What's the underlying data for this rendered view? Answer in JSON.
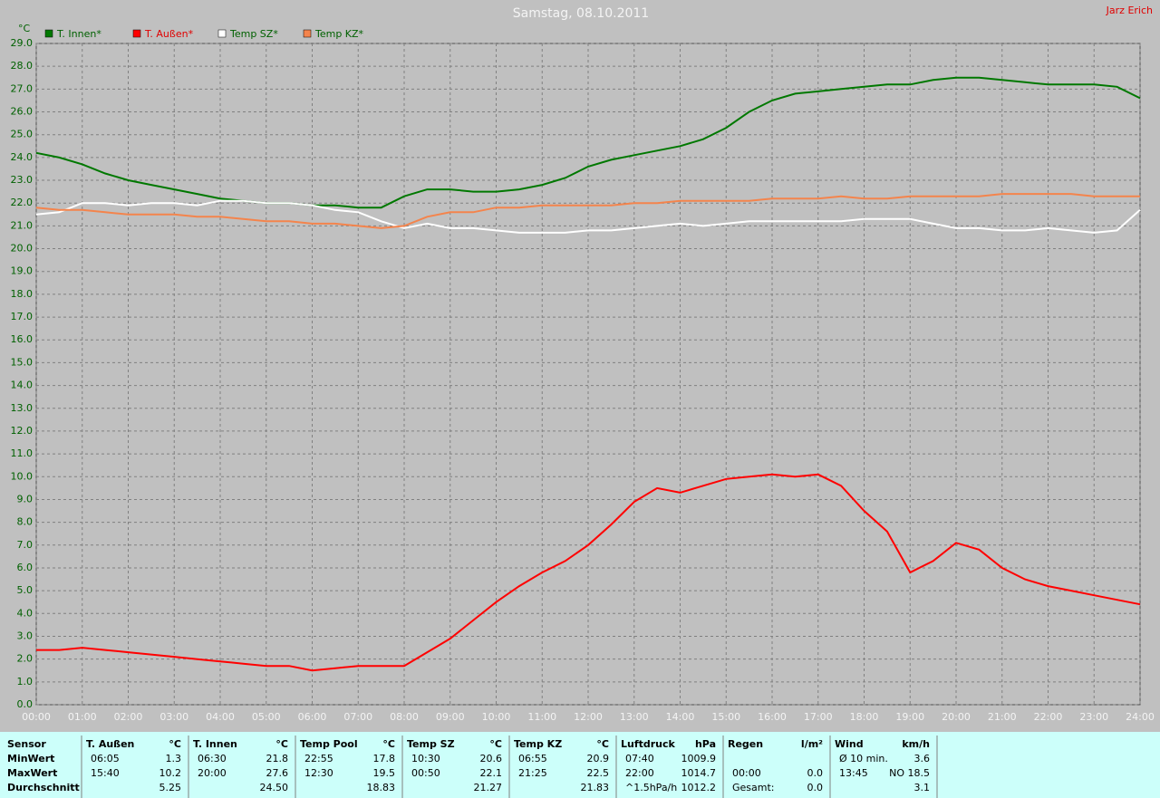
{
  "chart_data": {
    "type": "line",
    "title": "Samstag, 08.10.2011",
    "author": "Jarz Erich",
    "y_unit": "°C",
    "grid": true,
    "x": [
      0,
      0.5,
      1,
      1.5,
      2,
      2.5,
      3,
      3.5,
      4,
      4.5,
      5,
      5.5,
      6,
      6.5,
      7,
      7.5,
      8,
      8.5,
      9,
      9.5,
      10,
      10.5,
      11,
      11.5,
      12,
      12.5,
      13,
      13.5,
      14,
      14.5,
      15,
      15.5,
      16,
      16.5,
      17,
      17.5,
      18,
      18.5,
      19,
      19.5,
      20,
      20.5,
      21,
      21.5,
      22,
      22.5,
      23,
      23.5,
      24
    ],
    "series": [
      {
        "name": "T. Innen*",
        "color": "#007800",
        "values": [
          24.2,
          24.0,
          23.7,
          23.3,
          23.0,
          22.8,
          22.6,
          22.4,
          22.2,
          22.1,
          22.0,
          22.0,
          21.9,
          21.9,
          21.8,
          21.8,
          22.3,
          22.6,
          22.6,
          22.5,
          22.5,
          22.6,
          22.8,
          23.1,
          23.6,
          23.9,
          24.1,
          24.3,
          24.5,
          24.8,
          25.3,
          26.0,
          26.5,
          26.8,
          26.9,
          27.0,
          27.1,
          27.2,
          27.2,
          27.4,
          27.5,
          27.5,
          27.4,
          27.3,
          27.2,
          27.2,
          27.2,
          27.1,
          26.6
        ]
      },
      {
        "name": "T. Außen*",
        "color": "#ff0000",
        "values": [
          2.4,
          2.4,
          2.5,
          2.4,
          2.3,
          2.2,
          2.1,
          2.0,
          1.9,
          1.8,
          1.7,
          1.7,
          1.5,
          1.6,
          1.7,
          1.7,
          1.7,
          2.3,
          2.9,
          3.7,
          4.5,
          5.2,
          5.8,
          6.3,
          7.0,
          7.9,
          8.9,
          9.5,
          9.3,
          9.6,
          9.9,
          10.0,
          10.1,
          10.0,
          10.1,
          9.6,
          8.5,
          7.6,
          5.8,
          6.3,
          7.1,
          6.8,
          6.0,
          5.5,
          5.2,
          5.0,
          4.8,
          4.6,
          4.4
        ]
      },
      {
        "name": "Temp SZ*",
        "color": "#ffffff",
        "values": [
          21.5,
          21.6,
          22.0,
          22.0,
          21.9,
          22.0,
          22.0,
          21.9,
          22.1,
          22.1,
          22.0,
          22.0,
          21.9,
          21.7,
          21.6,
          21.2,
          20.9,
          21.1,
          20.9,
          20.9,
          20.8,
          20.7,
          20.7,
          20.7,
          20.8,
          20.8,
          20.9,
          21.0,
          21.1,
          21.0,
          21.1,
          21.2,
          21.2,
          21.2,
          21.2,
          21.2,
          21.3,
          21.3,
          21.3,
          21.1,
          20.9,
          20.9,
          20.8,
          20.8,
          20.9,
          20.8,
          20.7,
          20.8,
          21.7
        ]
      },
      {
        "name": "Temp KZ*",
        "color": "#f4844c",
        "values": [
          21.8,
          21.7,
          21.7,
          21.6,
          21.5,
          21.5,
          21.5,
          21.4,
          21.4,
          21.3,
          21.2,
          21.2,
          21.1,
          21.1,
          21.0,
          20.9,
          21.0,
          21.4,
          21.6,
          21.6,
          21.8,
          21.8,
          21.9,
          21.9,
          21.9,
          21.9,
          22.0,
          22.0,
          22.1,
          22.1,
          22.1,
          22.1,
          22.2,
          22.2,
          22.2,
          22.3,
          22.2,
          22.2,
          22.3,
          22.3,
          22.3,
          22.3,
          22.4,
          22.4,
          22.4,
          22.4,
          22.3,
          22.3,
          22.3
        ]
      }
    ],
    "xlim": [
      0,
      24
    ],
    "xticks": [
      {
        "value": 0,
        "label": "00:00"
      },
      {
        "value": 1,
        "label": "01:00"
      },
      {
        "value": 2,
        "label": "02:00"
      },
      {
        "value": 3,
        "label": "03:00"
      },
      {
        "value": 4,
        "label": "04:00"
      },
      {
        "value": 5,
        "label": "05:00"
      },
      {
        "value": 6,
        "label": "06:00"
      },
      {
        "value": 7,
        "label": "07:00"
      },
      {
        "value": 8,
        "label": "08:00"
      },
      {
        "value": 9,
        "label": "09:00"
      },
      {
        "value": 10,
        "label": "10:00"
      },
      {
        "value": 11,
        "label": "11:00"
      },
      {
        "value": 12,
        "label": "12:00"
      },
      {
        "value": 13,
        "label": "13:00"
      },
      {
        "value": 14,
        "label": "14:00"
      },
      {
        "value": 15,
        "label": "15:00"
      },
      {
        "value": 16,
        "label": "16:00"
      },
      {
        "value": 17,
        "label": "17:00"
      },
      {
        "value": 18,
        "label": "18:00"
      },
      {
        "value": 19,
        "label": "19:00"
      },
      {
        "value": 20,
        "label": "20:00"
      },
      {
        "value": 21,
        "label": "21:00"
      },
      {
        "value": 22,
        "label": "22:00"
      },
      {
        "value": 23,
        "label": "23:00"
      },
      {
        "value": 24,
        "label": "24:00"
      }
    ],
    "ylim": [
      0,
      29
    ],
    "yticks": [
      {
        "value": 0,
        "label": "0.0"
      },
      {
        "value": 1,
        "label": "1.0"
      },
      {
        "value": 2,
        "label": "2.0"
      },
      {
        "value": 3,
        "label": "3.0"
      },
      {
        "value": 4,
        "label": "4.0"
      },
      {
        "value": 5,
        "label": "5.0"
      },
      {
        "value": 6,
        "label": "6.0"
      },
      {
        "value": 7,
        "label": "7.0"
      },
      {
        "value": 8,
        "label": "8.0"
      },
      {
        "value": 9,
        "label": "9.0"
      },
      {
        "value": 10,
        "label": "10.0"
      },
      {
        "value": 11,
        "label": "11.0"
      },
      {
        "value": 12,
        "label": "12.0"
      },
      {
        "value": 13,
        "label": "13.0"
      },
      {
        "value": 14,
        "label": "14.0"
      },
      {
        "value": 15,
        "label": "15.0"
      },
      {
        "value": 16,
        "label": "16.0"
      },
      {
        "value": 17,
        "label": "17.0"
      },
      {
        "value": 18,
        "label": "18.0"
      },
      {
        "value": 19,
        "label": "19.0"
      },
      {
        "value": 20,
        "label": "20.0"
      },
      {
        "value": 21,
        "label": "21.0"
      },
      {
        "value": 22,
        "label": "22.0"
      },
      {
        "value": 23,
        "label": "23.0"
      },
      {
        "value": 24,
        "label": "24.0"
      },
      {
        "value": 25,
        "label": "25.0"
      },
      {
        "value": 26,
        "label": "26.0"
      },
      {
        "value": 27,
        "label": "27.0"
      },
      {
        "value": 28,
        "label": "28.0"
      },
      {
        "value": 29,
        "label": "29.0"
      }
    ]
  },
  "table": {
    "row_labels": [
      "Sensor",
      "MinWert",
      "MaxWert",
      "Durchschnitt"
    ],
    "groups": [
      {
        "name": "T. Außen",
        "unit": "°C",
        "rows": [
          [
            "06:05",
            "1.3"
          ],
          [
            "15:40",
            "10.2"
          ],
          [
            null,
            "5.25"
          ]
        ]
      },
      {
        "name": "T. Innen",
        "unit": "°C",
        "rows": [
          [
            "06:30",
            "21.8"
          ],
          [
            "20:00",
            "27.6"
          ],
          [
            null,
            "24.50"
          ]
        ]
      },
      {
        "name": "Temp Pool",
        "unit": "°C",
        "rows": [
          [
            "22:55",
            "17.8"
          ],
          [
            "12:30",
            "19.5"
          ],
          [
            null,
            "18.83"
          ]
        ]
      },
      {
        "name": "Temp SZ",
        "unit": "°C",
        "rows": [
          [
            "10:30",
            "20.6"
          ],
          [
            "00:50",
            "22.1"
          ],
          [
            null,
            "21.27"
          ]
        ]
      },
      {
        "name": "Temp KZ",
        "unit": "°C",
        "rows": [
          [
            "06:55",
            "20.9"
          ],
          [
            "21:25",
            "22.5"
          ],
          [
            null,
            "21.83"
          ]
        ]
      },
      {
        "name": "Luftdruck",
        "unit": "hPa",
        "rows": [
          [
            "07:40",
            "1009.9"
          ],
          [
            "22:00",
            "1014.7"
          ],
          [
            "^1.5hPa/h",
            "1012.2"
          ]
        ]
      },
      {
        "name": "Regen",
        "unit": "l/m²",
        "rows": [
          [
            null,
            null
          ],
          [
            "00:00",
            "0.0"
          ],
          [
            "Gesamt:",
            "0.0"
          ]
        ]
      },
      {
        "name": "Wind",
        "unit": "km/h",
        "rows": [
          [
            "Ø 10 min.",
            "3.6"
          ],
          [
            "13:45",
            "NO 18.5"
          ],
          [
            null,
            "3.1"
          ]
        ]
      }
    ]
  }
}
